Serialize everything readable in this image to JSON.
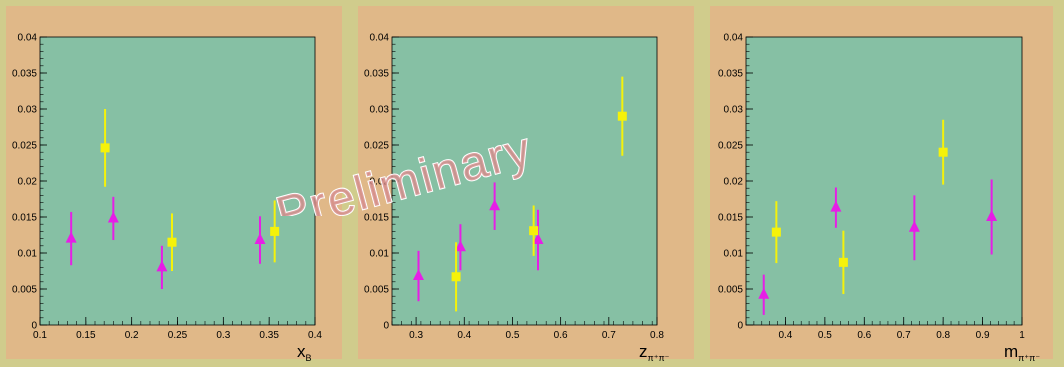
{
  "watermark": "Preliminary",
  "chart_data": [
    {
      "type": "scatter",
      "xlabel": "x",
      "xlabel_sub": "B",
      "xlim": [
        0.1,
        0.4
      ],
      "ylim": [
        0,
        0.04
      ],
      "x_ticks": [
        "0.1",
        "0.15",
        "0.2",
        "0.25",
        "0.3",
        "0.35",
        "0.4"
      ],
      "y_ticks": [
        "0",
        "0.005",
        "0.01",
        "0.015",
        "0.02",
        "0.025",
        "0.03",
        "0.035",
        "0.04"
      ],
      "series": [
        {
          "marker": "triangle",
          "color": "#e61ee6",
          "points": [
            {
              "x": 0.134,
              "y": 0.012,
              "err": 0.0037
            },
            {
              "x": 0.18,
              "y": 0.0148,
              "err": 0.003
            },
            {
              "x": 0.233,
              "y": 0.008,
              "err": 0.003
            },
            {
              "x": 0.34,
              "y": 0.0118,
              "err": 0.0033
            }
          ]
        },
        {
          "marker": "square",
          "color": "#f5f20a",
          "points": [
            {
              "x": 0.171,
              "y": 0.0246,
              "err": 0.0054
            },
            {
              "x": 0.244,
              "y": 0.0115,
              "err": 0.004
            },
            {
              "x": 0.356,
              "y": 0.013,
              "err": 0.0043
            }
          ]
        }
      ]
    },
    {
      "type": "scatter",
      "xlabel": "z",
      "xlabel_sub": "π⁺π⁻",
      "xlim": [
        0.25,
        0.8
      ],
      "ylim": [
        0,
        0.04
      ],
      "x_ticks": [
        "0.3",
        "0.4",
        "0.5",
        "0.6",
        "0.7",
        "0.8"
      ],
      "y_ticks": [
        "0",
        "0.005",
        "0.01",
        "0.015",
        "0.02",
        "0.025",
        "0.03",
        "0.035",
        "0.04"
      ],
      "series": [
        {
          "marker": "triangle",
          "color": "#e61ee6",
          "points": [
            {
              "x": 0.305,
              "y": 0.0068,
              "err": 0.0035
            },
            {
              "x": 0.392,
              "y": 0.0108,
              "err": 0.0032
            },
            {
              "x": 0.463,
              "y": 0.0165,
              "err": 0.0033
            },
            {
              "x": 0.553,
              "y": 0.0118,
              "err": 0.0042
            }
          ]
        },
        {
          "marker": "square",
          "color": "#f5f20a",
          "points": [
            {
              "x": 0.383,
              "y": 0.0067,
              "err": 0.0048
            },
            {
              "x": 0.544,
              "y": 0.0131,
              "err": 0.0035
            },
            {
              "x": 0.728,
              "y": 0.029,
              "err": 0.0055
            }
          ]
        }
      ]
    },
    {
      "type": "scatter",
      "xlabel": "m",
      "xlabel_sub": "π⁺π⁻",
      "xlim": [
        0.3,
        1.0
      ],
      "ylim": [
        0,
        0.04
      ],
      "x_ticks": [
        "0.4",
        "0.5",
        "0.6",
        "0.7",
        "0.8",
        "0.9",
        "1"
      ],
      "y_ticks": [
        "0",
        "0.005",
        "0.01",
        "0.015",
        "0.02",
        "0.025",
        "0.03",
        "0.035",
        "0.04"
      ],
      "series": [
        {
          "marker": "triangle",
          "color": "#e61ee6",
          "points": [
            {
              "x": 0.345,
              "y": 0.0042,
              "err": 0.0028
            },
            {
              "x": 0.528,
              "y": 0.0163,
              "err": 0.0028
            },
            {
              "x": 0.727,
              "y": 0.0135,
              "err": 0.0045
            },
            {
              "x": 0.923,
              "y": 0.015,
              "err": 0.0052
            }
          ]
        },
        {
          "marker": "square",
          "color": "#f5f20a",
          "points": [
            {
              "x": 0.377,
              "y": 0.0129,
              "err": 0.0043
            },
            {
              "x": 0.547,
              "y": 0.0087,
              "err": 0.0044
            },
            {
              "x": 0.8,
              "y": 0.024,
              "err": 0.0045
            }
          ]
        }
      ]
    }
  ]
}
